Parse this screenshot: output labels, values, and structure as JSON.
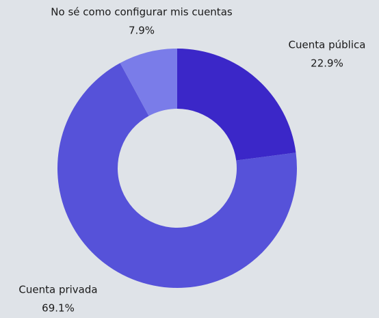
{
  "chart_data": {
    "type": "donut",
    "categories": [
      "Cuenta pública",
      "Cuenta privada",
      "No sé como configurar mis cuentas"
    ],
    "values": [
      22.9,
      69.1,
      7.9
    ],
    "value_labels": [
      "22.9%",
      "69.1%",
      "7.9%"
    ],
    "colors": [
      "#3b27c8",
      "#5652d9",
      "#7a7ce9"
    ]
  }
}
